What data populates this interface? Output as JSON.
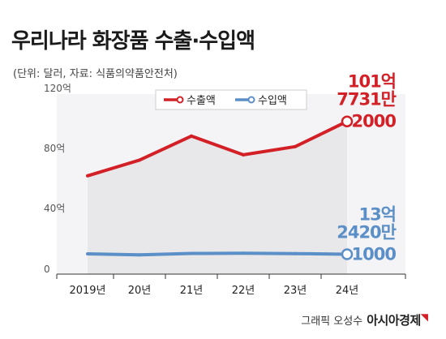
{
  "title": "우리나라 화장품 수출·수입액",
  "subtitle": "(단위: 달러, 자료: 식품의약품안전처)",
  "credit": "그래픽 오성수",
  "logo": "아시아경제",
  "colors": {
    "export": "#d32027",
    "import": "#5b8fc7",
    "area": "#e8e8ea"
  },
  "chart_data": {
    "type": "line",
    "categories": [
      "2019년",
      "20년",
      "21년",
      "22년",
      "23년",
      "24년"
    ],
    "y_ticks": [
      "0",
      "40억",
      "80억",
      "120억"
    ],
    "y_tick_values": [
      0,
      40,
      80,
      120
    ],
    "ylim": [
      0,
      120
    ],
    "unit": "억 달러",
    "grid": false,
    "legend_position": "top-center",
    "series": [
      {
        "name": "수출액",
        "values": [
          65.5,
          76,
          92,
          79.5,
          85,
          101.77
        ]
      },
      {
        "name": "수입액",
        "values": [
          13.5,
          12.8,
          13.8,
          13.9,
          13.7,
          13.24
        ]
      }
    ],
    "annotations": {
      "export": [
        "101억",
        "7731만",
        "2000"
      ],
      "import": [
        "13억",
        "2420만",
        "1000"
      ]
    }
  }
}
